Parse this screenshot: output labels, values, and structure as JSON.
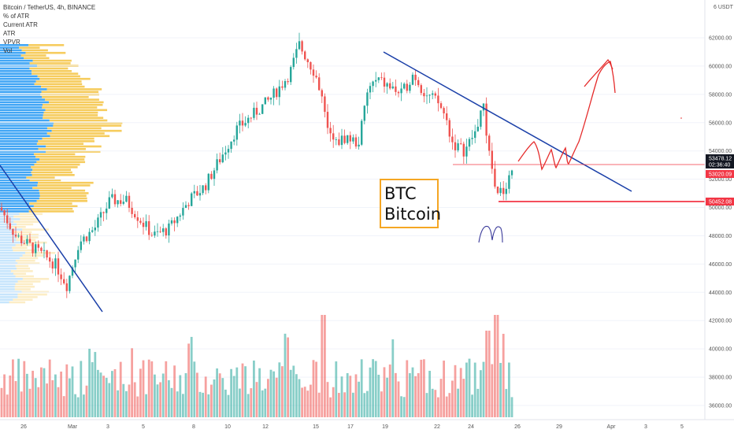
{
  "indicators": {
    "title": "Bitcoin / TetherUS, 4h, BINANCE",
    "items": [
      "% of ATR",
      "Current ATR",
      "ATR",
      "VPVR",
      "Vol"
    ]
  },
  "price_axis": {
    "currency": "USDT",
    "ticks": [
      "62000.00",
      "60000.00",
      "58000.00",
      "56000.00",
      "54000.00",
      "52000.00",
      "50000.00",
      "48000.00",
      "46000.00",
      "44000.00",
      "42000.00",
      "40000.00",
      "38000.00",
      "36000.00"
    ],
    "tags": [
      {
        "label": "53478.12",
        "sub": "02:36:40",
        "color": "#131722"
      },
      {
        "label": "53020.09",
        "color": "#f23645"
      },
      {
        "label": "50452.08",
        "color": "#f23645"
      }
    ]
  },
  "time_axis": {
    "ticks": [
      "26",
      "Mar",
      "3",
      "5",
      "8",
      "10",
      "12",
      "15",
      "17",
      "19",
      "22",
      "24",
      "26",
      "29",
      "Apr",
      "3",
      "5"
    ]
  },
  "annotation": {
    "line1": "BTC",
    "line2": "Bitcoin"
  },
  "colors": {
    "up": "#26a69a",
    "down": "#ef5350",
    "trendline": "#1a3fa8",
    "support": "#f23645",
    "vpvr_blue": "#2196f3",
    "vpvr_yellow": "#f5c342"
  }
}
